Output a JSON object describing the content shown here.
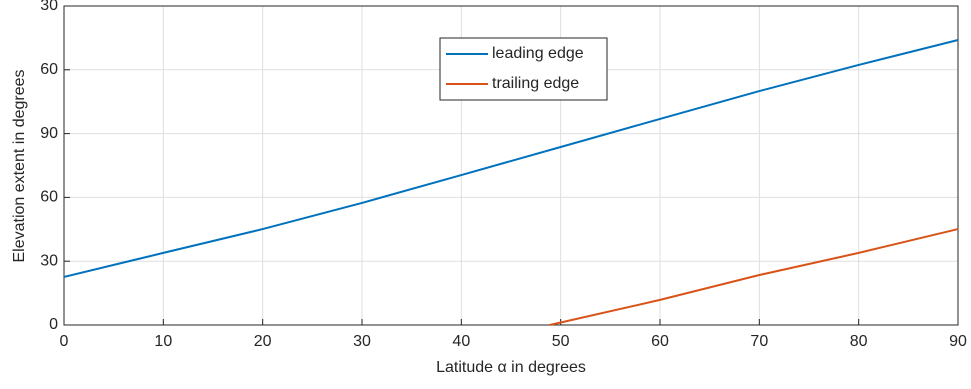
{
  "chart_data": {
    "type": "line",
    "xlabel": "Latitude α in degrees",
    "ylabel": "Elevation extent in degrees",
    "xlim": [
      0,
      90
    ],
    "xticks": [
      0,
      10,
      20,
      30,
      40,
      50,
      60,
      70,
      80,
      90
    ],
    "ylim": [
      0,
      150
    ],
    "yticks": [
      0,
      30,
      60,
      90,
      {
        "value": 120,
        "label": "60"
      },
      {
        "value": 150,
        "label": "30"
      }
    ],
    "grid": true,
    "legend": "north",
    "series": [
      {
        "name": "leading edge",
        "color": "#0072bd",
        "x": [
          0,
          10,
          20,
          30,
          40,
          50,
          60,
          70,
          80,
          90
        ],
        "values": [
          22.6,
          33.9,
          45.1,
          57.4,
          70.5,
          83.7,
          96.9,
          110,
          122.3,
          134
        ]
      },
      {
        "name": "trailing edge",
        "color": "#d95319",
        "x": [
          48.9,
          60,
          70,
          80,
          90
        ],
        "values": [
          0,
          11.8,
          23.5,
          33.9,
          45.1
        ]
      }
    ]
  }
}
